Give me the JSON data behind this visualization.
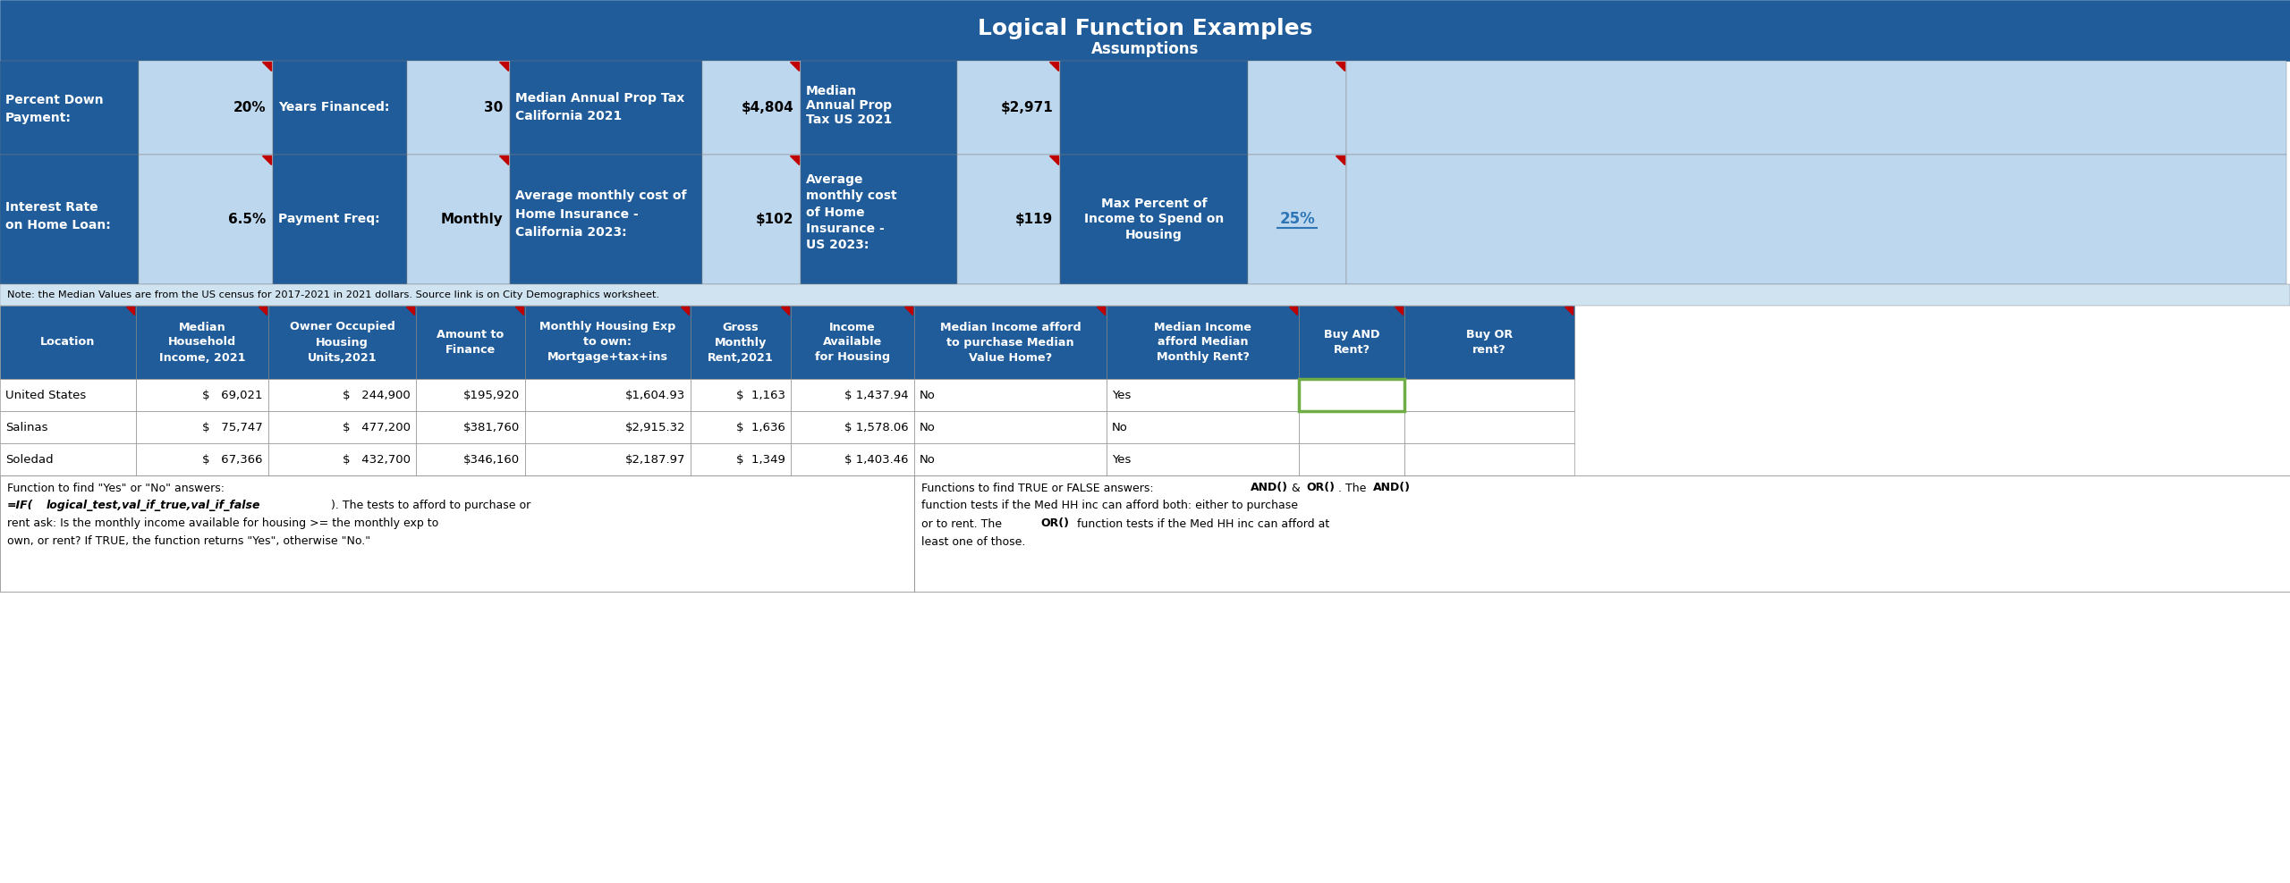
{
  "title": "Logical Function Examples",
  "subtitle": "Assumptions",
  "note": "Note: the Median Values are from the US census for 2017-2021 in 2021 dollars. Source link is on City Demographics worksheet.",
  "dark_blue": "#1F5C99",
  "light_blue": "#BDD7EE",
  "white": "#FFFFFF",
  "black": "#000000",
  "red_tri": "#C00000",
  "green_border": "#70AD47",
  "link_blue": "#2E75B6",
  "table_data": [
    [
      "United States",
      "$   69,021",
      "$   244,900",
      "$195,920",
      "$1,604.93",
      "$  1,163",
      "$ 1,437.94",
      "No",
      "Yes",
      "",
      ""
    ],
    [
      "Salinas",
      "$   75,747",
      "$   477,200",
      "$381,760",
      "$2,915.32",
      "$  1,636",
      "$ 1,578.06",
      "No",
      "No",
      "",
      ""
    ],
    [
      "Soledad",
      "$   67,366",
      "$   432,700",
      "$346,160",
      "$2,187.97",
      "$  1,349",
      "$ 1,403.46",
      "No",
      "Yes",
      "",
      ""
    ]
  ],
  "footnote_left_line1": "Function to find \"Yes\" or \"No\" answers:",
  "footnote_left_line3": "rent ask: Is the monthly income available for housing >= the monthly exp to",
  "footnote_left_line4": "own, or rent? If TRUE, the function returns \"Yes\", otherwise \"No.\"",
  "footnote_right_line2": "function tests if the Med HH inc can afford both: either to purchase",
  "footnote_right_line4": "least one of those."
}
